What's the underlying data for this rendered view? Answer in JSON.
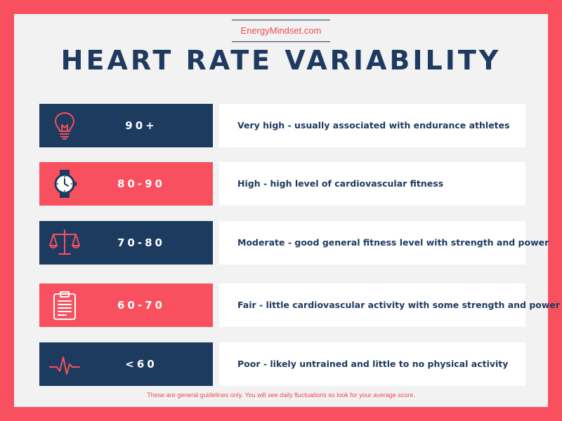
{
  "site": "EnergyMindset.com",
  "title": "HEART RATE VARIABILITY",
  "rows": [
    {
      "range": "90+",
      "description": "Very high - usually associated with endurance athletes",
      "icon": "lightbulb-icon",
      "color": "#1d3a5f"
    },
    {
      "range": "80-90",
      "description": "High - high level of cardiovascular fitness",
      "icon": "watch-icon",
      "color": "#f8505f"
    },
    {
      "range": "70-80",
      "description": "Moderate - good general fitness level with strength and power",
      "icon": "scales-icon",
      "color": "#1d3a5f"
    },
    {
      "range": "60-70",
      "description": "Fair - little cardiovascular activity with some strength and power",
      "icon": "clipboard-icon",
      "color": "#f8505f"
    },
    {
      "range": "<60",
      "description": "Poor - likely untrained and little to no physical activity",
      "icon": "heartbeat-icon",
      "color": "#1d3a5f"
    }
  ],
  "footnote": "These are general guidelines only. You will see daily fluctuations so look for your average score.",
  "colors": {
    "navy": "#1d3a5f",
    "red": "#f8505f",
    "background": "#f2f2f2"
  }
}
